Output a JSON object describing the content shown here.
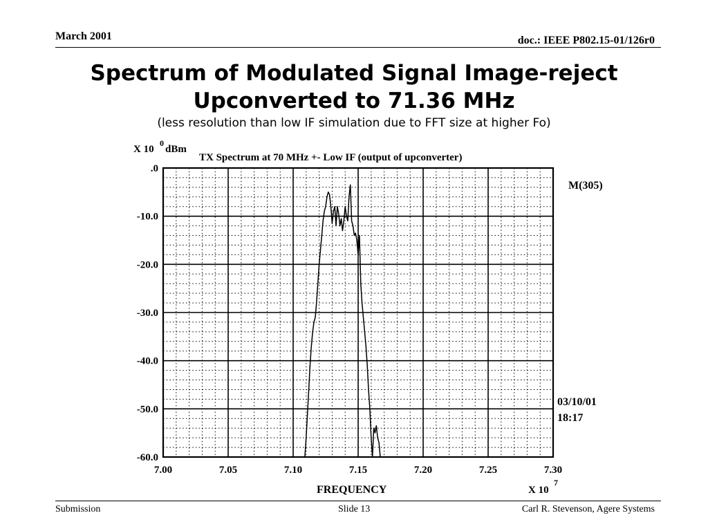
{
  "header": {
    "date": "March 2001",
    "doc_id": "doc.: IEEE P802.15-01/126r0"
  },
  "slide": {
    "title_line1": "Spectrum of Modulated Signal Image-reject",
    "title_line2": "Upconverted to 71.36 MHz",
    "subtitle": "(less resolution than low IF simulation due to FFT size at higher Fo)"
  },
  "footer": {
    "left": "Submission",
    "center": "Slide 13",
    "right": "Carl R. Stevenson, Agere Systems"
  },
  "chart_data": {
    "type": "line",
    "title": "TX Spectrum at 70 MHz +- Low IF (output of upconverter)",
    "ylabel_prefix": "X 10",
    "ylabel_exp": "0",
    "ylabel_unit": "dBm",
    "xlabel": "FREQUENCY",
    "x_multiplier_prefix": "X 10",
    "x_multiplier_exp": "7",
    "marker_label": "M(305)",
    "timestamp_date": "03/10/01",
    "timestamp_time": "18:17",
    "xlim": [
      7.0,
      7.3
    ],
    "ylim": [
      -60.0,
      0.0
    ],
    "x_ticks": [
      "7.00",
      "7.05",
      "7.10",
      "7.15",
      "7.20",
      "7.25",
      "7.30"
    ],
    "y_ticks": [
      ".0",
      "-10.0",
      "-20.0",
      "-30.0",
      "-40.0",
      "-50.0",
      "-60.0"
    ],
    "grid": true,
    "series": [
      {
        "x": [
          7.109,
          7.11,
          7.111,
          7.112,
          7.113,
          7.114,
          7.115,
          7.116,
          7.117,
          7.118,
          7.119,
          7.12,
          7.121,
          7.122,
          7.123,
          7.124,
          7.125,
          7.126,
          7.127,
          7.128,
          7.129,
          7.13,
          7.131,
          7.132,
          7.133,
          7.134,
          7.135,
          7.136,
          7.137,
          7.138,
          7.139,
          7.14,
          7.141,
          7.142,
          7.143,
          7.144,
          7.145,
          7.146,
          7.147,
          7.148,
          7.149,
          7.15,
          7.151,
          7.152,
          7.153,
          7.154,
          7.155,
          7.156,
          7.157,
          7.158,
          7.159,
          7.16,
          7.161,
          7.162,
          7.163,
          7.164,
          7.165,
          7.166,
          7.167
        ],
        "y": [
          -60,
          -56,
          -51,
          -46,
          -41,
          -37,
          -34,
          -32,
          -31,
          -28,
          -24,
          -20,
          -17,
          -14,
          -11,
          -9,
          -8,
          -6,
          -5,
          -5.5,
          -8,
          -11.5,
          -9,
          -8,
          -12,
          -8,
          -9.5,
          -12,
          -10.5,
          -13,
          -11,
          -8,
          -10,
          -11,
          -6,
          -3.5,
          -11,
          -12,
          -14,
          -13.5,
          -15,
          -18,
          -14,
          -24,
          -28,
          -31,
          -34,
          -37,
          -41,
          -46,
          -50,
          -56,
          -60,
          -54,
          -55,
          -53.5,
          -56,
          -57,
          -60
        ]
      }
    ]
  }
}
